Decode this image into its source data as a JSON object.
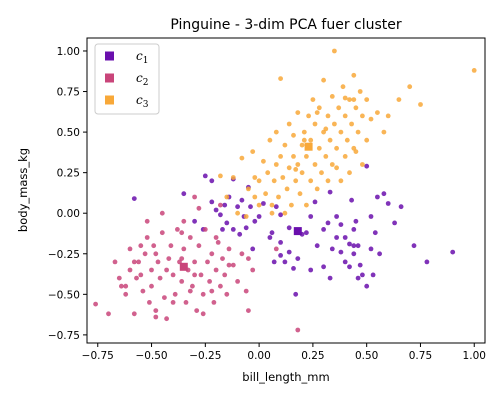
{
  "chart_data": {
    "type": "scatter",
    "title": "Pinguine - 3-dim PCA fuer cluster",
    "xlabel": "bill_length_mm",
    "ylabel": "body_mass_kg",
    "xlim": [
      -0.8,
      1.05
    ],
    "ylim": [
      -0.8,
      1.08
    ],
    "xticks": [
      -0.75,
      -0.5,
      -0.25,
      0.0,
      0.25,
      0.5,
      0.75,
      1.0
    ],
    "xtick_labels": [
      "−0.75",
      "−0.50",
      "−0.25",
      "0.00",
      "0.25",
      "0.50",
      "0.75",
      "1.00"
    ],
    "yticks": [
      -0.75,
      -0.5,
      -0.25,
      0.0,
      0.25,
      0.5,
      0.75,
      1.0
    ],
    "ytick_labels": [
      "−0.75",
      "−0.50",
      "−0.25",
      "0.00",
      "0.25",
      "0.50",
      "0.75",
      "1.00"
    ],
    "grid": false,
    "legend_position": "top-left",
    "series": [
      {
        "name": "c1",
        "color": "#6a0fad",
        "points": [
          [
            -0.58,
            0.09
          ],
          [
            -0.35,
            0.12
          ],
          [
            -0.3,
            -0.05
          ],
          [
            -0.26,
            -0.1
          ],
          [
            -0.25,
            0.23
          ],
          [
            -0.22,
            0.2
          ],
          [
            -0.22,
            0.07
          ],
          [
            -0.2,
            0.02
          ],
          [
            -0.18,
            -0.01
          ],
          [
            -0.17,
            -0.1
          ],
          [
            -0.16,
            0.05
          ],
          [
            -0.15,
            -0.06
          ],
          [
            -0.14,
            0.1
          ],
          [
            -0.12,
            0.21
          ],
          [
            -0.12,
            -0.1
          ],
          [
            -0.1,
            0.04
          ],
          [
            -0.09,
            -0.13
          ],
          [
            -0.08,
            0.08
          ],
          [
            -0.07,
            -0.02
          ],
          [
            -0.06,
            -0.09
          ],
          [
            -0.05,
            0.16
          ],
          [
            -0.04,
            0.04
          ],
          [
            -0.02,
            -0.05
          ],
          [
            0.0,
            -0.02
          ],
          [
            0.02,
            0.06
          ],
          [
            0.05,
            -0.15
          ],
          [
            0.08,
            0.04
          ],
          [
            0.1,
            -0.01
          ],
          [
            0.1,
            -0.18
          ],
          [
            0.12,
            -0.3
          ],
          [
            0.14,
            -0.09
          ],
          [
            0.14,
            -0.24
          ],
          [
            0.1,
            -0.26
          ],
          [
            0.16,
            -0.34
          ],
          [
            0.18,
            -0.28
          ],
          [
            0.2,
            -0.13
          ],
          [
            0.22,
            -0.12
          ],
          [
            0.24,
            -0.02
          ],
          [
            0.26,
            0.07
          ],
          [
            0.27,
            -0.2
          ],
          [
            0.3,
            -0.1
          ],
          [
            0.3,
            -0.33
          ],
          [
            0.32,
            -0.06
          ],
          [
            0.33,
            0.13
          ],
          [
            0.34,
            -0.22
          ],
          [
            0.36,
            -0.02
          ],
          [
            0.36,
            -0.15
          ],
          [
            0.38,
            -0.24
          ],
          [
            0.38,
            -0.07
          ],
          [
            0.4,
            -0.15
          ],
          [
            0.4,
            -0.3
          ],
          [
            0.42,
            -0.19
          ],
          [
            0.43,
            0.08
          ],
          [
            0.44,
            -0.1
          ],
          [
            0.44,
            -0.25
          ],
          [
            0.45,
            -0.05
          ],
          [
            0.46,
            -0.2
          ],
          [
            0.47,
            -0.32
          ],
          [
            0.48,
            -0.38
          ],
          [
            0.5,
            -0.45
          ],
          [
            0.5,
            0.29
          ],
          [
            0.52,
            -0.02
          ],
          [
            0.52,
            -0.22
          ],
          [
            0.53,
            -0.38
          ],
          [
            0.54,
            -0.12
          ],
          [
            0.55,
            0.1
          ],
          [
            0.56,
            -0.25
          ],
          [
            0.58,
            0.12
          ],
          [
            0.6,
            0.06
          ],
          [
            0.63,
            -0.06
          ],
          [
            0.66,
            0.04
          ],
          [
            0.72,
            -0.2
          ],
          [
            0.78,
            -0.3
          ],
          [
            0.9,
            -0.24
          ],
          [
            0.17,
            -0.5
          ],
          [
            0.24,
            -0.35
          ],
          [
            0.42,
            -0.33
          ],
          [
            0.33,
            -0.4
          ],
          [
            0.46,
            -0.4
          ],
          [
            0.06,
            -0.12
          ],
          [
            -0.03,
            -0.22
          ],
          [
            0.44,
            -0.2
          ],
          [
            0.07,
            -0.3
          ]
        ],
        "centroid": [
          0.18,
          -0.11
        ]
      },
      {
        "name": "c2",
        "color": "#c9457a",
        "points": [
          [
            -0.76,
            -0.56
          ],
          [
            -0.7,
            -0.62
          ],
          [
            -0.67,
            -0.3
          ],
          [
            -0.65,
            -0.4
          ],
          [
            -0.64,
            -0.45
          ],
          [
            -0.62,
            -0.5
          ],
          [
            -0.6,
            -0.35
          ],
          [
            -0.6,
            -0.22
          ],
          [
            -0.58,
            -0.62
          ],
          [
            -0.57,
            -0.4
          ],
          [
            -0.56,
            -0.3
          ],
          [
            -0.55,
            -0.2
          ],
          [
            -0.54,
            -0.48
          ],
          [
            -0.53,
            -0.25
          ],
          [
            -0.52,
            -0.15
          ],
          [
            -0.51,
            -0.55
          ],
          [
            -0.5,
            -0.35
          ],
          [
            -0.5,
            -0.45
          ],
          [
            -0.49,
            -0.2
          ],
          [
            -0.48,
            -0.6
          ],
          [
            -0.47,
            -0.3
          ],
          [
            -0.46,
            -0.4
          ],
          [
            -0.45,
            -0.12
          ],
          [
            -0.44,
            -0.52
          ],
          [
            -0.43,
            -0.65
          ],
          [
            -0.42,
            -0.28
          ],
          [
            -0.41,
            -0.2
          ],
          [
            -0.4,
            -0.38
          ],
          [
            -0.39,
            -0.5
          ],
          [
            -0.38,
            -0.1
          ],
          [
            -0.37,
            -0.3
          ],
          [
            -0.36,
            -0.42
          ],
          [
            -0.35,
            -0.22
          ],
          [
            -0.34,
            -0.55
          ],
          [
            -0.33,
            -0.35
          ],
          [
            -0.32,
            -0.15
          ],
          [
            -0.31,
            -0.45
          ],
          [
            -0.3,
            -0.3
          ],
          [
            -0.29,
            -0.6
          ],
          [
            -0.28,
            -0.2
          ],
          [
            -0.27,
            -0.38
          ],
          [
            -0.26,
            -0.5
          ],
          [
            -0.25,
            -0.1
          ],
          [
            -0.24,
            -0.3
          ],
          [
            -0.23,
            -0.42
          ],
          [
            -0.22,
            -0.25
          ],
          [
            -0.21,
            -0.55
          ],
          [
            -0.2,
            -0.35
          ],
          [
            -0.19,
            -0.18
          ],
          [
            -0.18,
            -0.45
          ],
          [
            -0.17,
            -0.28
          ],
          [
            -0.16,
            -0.38
          ],
          [
            -0.15,
            -0.5
          ],
          [
            -0.14,
            -0.22
          ],
          [
            -0.12,
            -0.32
          ],
          [
            -0.1,
            -0.42
          ],
          [
            -0.08,
            -0.25
          ],
          [
            -0.06,
            -0.48
          ],
          [
            -0.05,
            -0.28
          ],
          [
            -0.03,
            -0.35
          ],
          [
            0.08,
            -0.22
          ],
          [
            0.18,
            -0.72
          ],
          [
            -0.05,
            -0.6
          ],
          [
            -0.3,
            0.1
          ],
          [
            -0.45,
            0.0
          ],
          [
            -0.52,
            -0.05
          ],
          [
            -0.28,
            0.03
          ],
          [
            -0.18,
            0.05
          ],
          [
            -0.35,
            -0.05
          ],
          [
            -0.4,
            -0.55
          ],
          [
            -0.58,
            -0.3
          ],
          [
            -0.62,
            -0.45
          ],
          [
            -0.48,
            -0.25
          ],
          [
            -0.36,
            -0.12
          ],
          [
            -0.22,
            -0.48
          ],
          [
            -0.43,
            -0.35
          ],
          [
            -0.55,
            -0.38
          ],
          [
            -0.26,
            -0.62
          ],
          [
            -0.32,
            -0.48
          ],
          [
            -0.14,
            -0.32
          ],
          [
            -0.48,
            -0.64
          ],
          [
            -0.2,
            -0.15
          ],
          [
            -0.36,
            -0.28
          ],
          [
            -0.3,
            -0.38
          ]
        ],
        "centroid": [
          -0.35,
          -0.33
        ]
      },
      {
        "name": "c3",
        "color": "#f8a838",
        "points": [
          [
            -0.18,
            0.23
          ],
          [
            -0.15,
            0.1
          ],
          [
            -0.12,
            0.22
          ],
          [
            -0.1,
            0.0
          ],
          [
            -0.08,
            0.34
          ],
          [
            -0.06,
            -0.02
          ],
          [
            -0.05,
            0.15
          ],
          [
            -0.03,
            0.38
          ],
          [
            -0.02,
            0.1
          ],
          [
            0.0,
            0.2
          ],
          [
            0.0,
            0.05
          ],
          [
            0.02,
            0.32
          ],
          [
            0.03,
            0.12
          ],
          [
            0.04,
            0.25
          ],
          [
            0.05,
            0.45
          ],
          [
            0.06,
            0.05
          ],
          [
            0.07,
            0.2
          ],
          [
            0.08,
            0.3
          ],
          [
            0.08,
            0.5
          ],
          [
            0.09,
            0.1
          ],
          [
            0.1,
            0.35
          ],
          [
            0.1,
            0.83
          ],
          [
            0.11,
            0.22
          ],
          [
            0.12,
            0.0
          ],
          [
            0.12,
            0.42
          ],
          [
            0.13,
            0.15
          ],
          [
            0.14,
            0.55
          ],
          [
            0.14,
            0.28
          ],
          [
            0.15,
            0.05
          ],
          [
            0.16,
            0.35
          ],
          [
            0.16,
            0.48
          ],
          [
            0.17,
            0.2
          ],
          [
            0.18,
            0.3
          ],
          [
            0.18,
            0.62
          ],
          [
            0.19,
            0.12
          ],
          [
            0.2,
            0.42
          ],
          [
            0.2,
            0.25
          ],
          [
            0.21,
            0.5
          ],
          [
            0.22,
            0.35
          ],
          [
            0.22,
            0.05
          ],
          [
            0.23,
            0.6
          ],
          [
            0.24,
            0.2
          ],
          [
            0.24,
            0.45
          ],
          [
            0.25,
            0.7
          ],
          [
            0.26,
            0.3
          ],
          [
            0.26,
            0.55
          ],
          [
            0.27,
            0.15
          ],
          [
            0.28,
            0.4
          ],
          [
            0.28,
            0.65
          ],
          [
            0.29,
            0.25
          ],
          [
            0.3,
            0.5
          ],
          [
            0.3,
            0.82
          ],
          [
            0.31,
            0.35
          ],
          [
            0.32,
            0.6
          ],
          [
            0.32,
            0.2
          ],
          [
            0.33,
            0.45
          ],
          [
            0.34,
            0.72
          ],
          [
            0.34,
            0.3
          ],
          [
            0.35,
            1.0
          ],
          [
            0.35,
            0.55
          ],
          [
            0.36,
            0.4
          ],
          [
            0.37,
            0.65
          ],
          [
            0.38,
            0.2
          ],
          [
            0.38,
            0.5
          ],
          [
            0.39,
            0.78
          ],
          [
            0.4,
            0.35
          ],
          [
            0.4,
            0.6
          ],
          [
            0.41,
            0.45
          ],
          [
            0.42,
            0.7
          ],
          [
            0.42,
            0.25
          ],
          [
            0.43,
            0.55
          ],
          [
            0.44,
            0.85
          ],
          [
            0.44,
            0.4
          ],
          [
            0.45,
            0.65
          ],
          [
            0.46,
            0.5
          ],
          [
            0.47,
            0.75
          ],
          [
            0.48,
            0.3
          ],
          [
            0.48,
            0.6
          ],
          [
            0.5,
            0.45
          ],
          [
            0.5,
            0.7
          ],
          [
            0.52,
            0.58
          ],
          [
            0.55,
            0.62
          ],
          [
            0.58,
            0.5
          ],
          [
            0.6,
            0.6
          ],
          [
            0.65,
            0.7
          ],
          [
            0.7,
            0.78
          ],
          [
            0.75,
            0.67
          ],
          [
            1.0,
            0.88
          ],
          [
            0.45,
            0.38
          ],
          [
            0.06,
            -0.0
          ],
          [
            -0.02,
            0.22
          ],
          [
            0.21,
            0.45
          ],
          [
            0.27,
            0.62
          ],
          [
            0.36,
            0.28
          ],
          [
            0.44,
            0.7
          ],
          [
            0.31,
            0.52
          ],
          [
            0.17,
            0.27
          ],
          [
            0.4,
            0.71
          ]
        ],
        "centroid": [
          0.23,
          0.41
        ]
      }
    ]
  }
}
